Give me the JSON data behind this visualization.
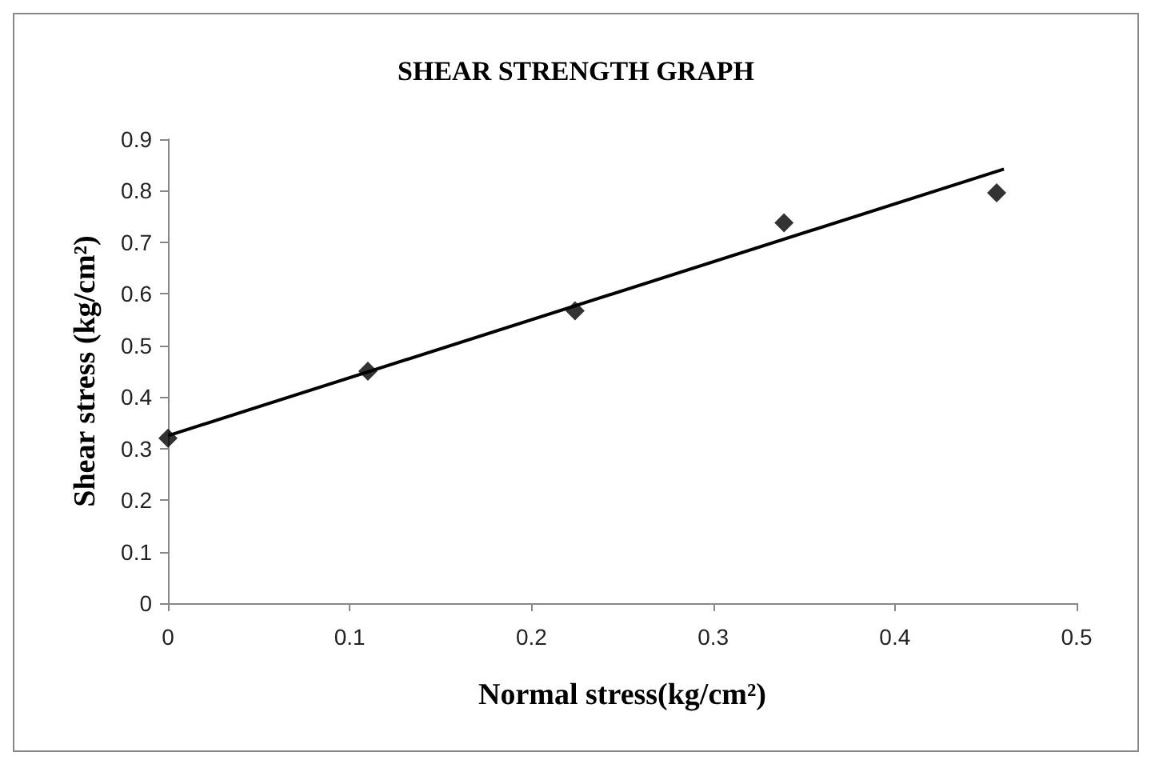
{
  "chart_data": {
    "type": "scatter",
    "title": "SHEAR STRENGTH GRAPH",
    "xlabel": "Normal stress(kg/cm²)",
    "ylabel": "Shear stress (kg/cm²)",
    "series": [
      {
        "color": "#000000",
        "marker": "diamond",
        "x": [
          0,
          0.11,
          0.224,
          0.339,
          0.456
        ],
        "values": [
          0.32,
          0.45,
          0.567,
          0.738,
          0.796
        ]
      },
      {
        "type": "line",
        "color": "#000000",
        "marker": "none",
        "line_style": "solid",
        "x": [
          0,
          0.46
        ],
        "values": [
          0.325,
          0.842
        ]
      }
    ],
    "xlim": [
      0,
      0.5
    ],
    "xticks": [
      0,
      0.1,
      0.2,
      0.3,
      0.4,
      0.5
    ],
    "ylim": [
      0,
      0.9
    ],
    "yticks": [
      0,
      0.1,
      0.2,
      0.3,
      0.4,
      0.5,
      0.6,
      0.7,
      0.8,
      0.9
    ],
    "grid": false
  }
}
